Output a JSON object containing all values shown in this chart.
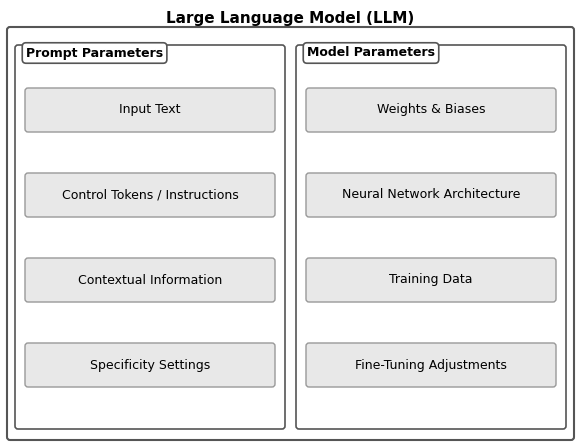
{
  "title": "Large Language Model (LLM)",
  "title_fontsize": 11,
  "title_fontweight": "bold",
  "bg_color": "#ffffff",
  "outer_box_ec": "#555555",
  "section_box_ec": "#555555",
  "item_box_ec": "#999999",
  "item_box_fc": "#e8e8e8",
  "text_color": "#000000",
  "left_section_label": "Prompt Parameters",
  "right_section_label": "Model Parameters",
  "left_items": [
    "Input Text",
    "Control Tokens / Instructions",
    "Contextual Information",
    "Specificity Settings"
  ],
  "right_items": [
    "Weights & Biases",
    "Neural Network Architecture",
    "Training Data",
    "Fine-Tuning Adjustments"
  ],
  "section_label_fontsize": 9,
  "item_fontsize": 9
}
